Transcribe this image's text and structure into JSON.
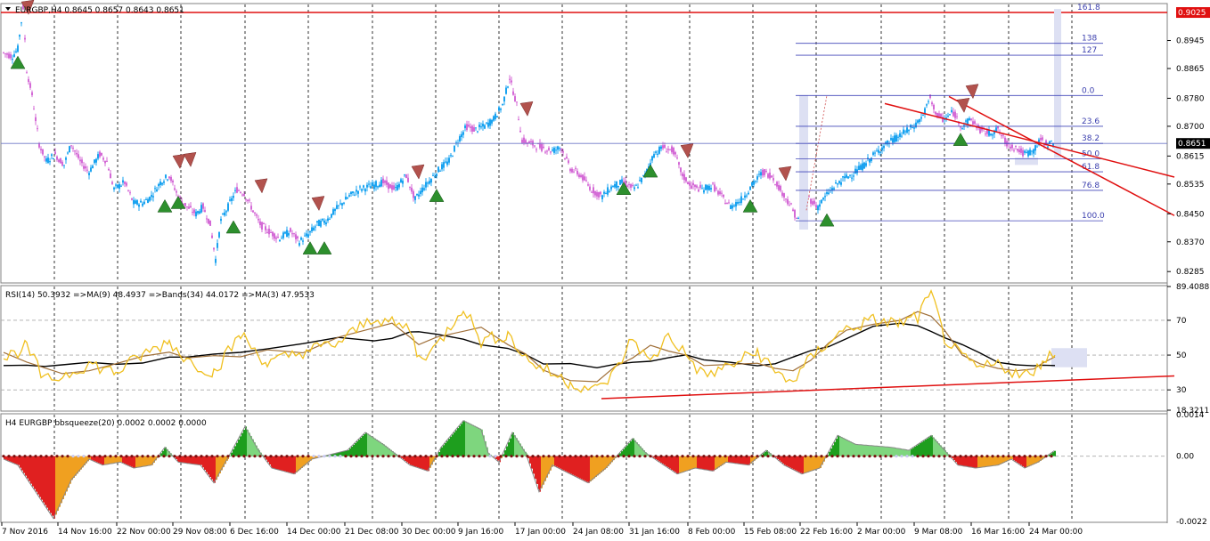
{
  "main_panel": {
    "header": "EURGBP,H4  0.8645 0.8657 0.8643 0.8651",
    "price_ticks": [
      "0.8945",
      "0.8865",
      "0.8780",
      "0.8700",
      "0.8615",
      "0.8535",
      "0.8450",
      "0.8370",
      "0.8285"
    ],
    "price_min": 0.8255,
    "price_max": 0.9048,
    "resistance_price": 0.9025,
    "resistance_label": "0.9025",
    "current_price": 0.8651,
    "current_price_label": "0.8651",
    "fib_levels": [
      {
        "label": "161.8",
        "price": 0.9025
      },
      {
        "label": "138",
        "price": 0.8937
      },
      {
        "label": "127",
        "price": 0.8903
      },
      {
        "label": "0.0",
        "price": 0.8788
      },
      {
        "label": "23.6",
        "price": 0.87
      },
      {
        "label": "38.2",
        "price": 0.8651
      },
      {
        "label": "50.0",
        "price": 0.8607
      },
      {
        "label": "61.8",
        "price": 0.857
      },
      {
        "label": "76.8",
        "price": 0.8517
      },
      {
        "label": "100.0",
        "price": 0.843
      }
    ],
    "colors": {
      "bull": "#1aa3f0",
      "bear": "#d46ad6",
      "resistance": "#e01010",
      "fib": "#4046b8",
      "sell_arrow": "#b2524d",
      "buy_arrow": "#2d8f2d"
    }
  },
  "rsi_panel": {
    "header": "RSI(14) 50.3932  =>MA(9) 48.4937  =>Bands(34) 44.0172  =>MA(3) 47.9533",
    "ticks": [
      "89.4088",
      "70",
      "50",
      "30",
      "18.3211"
    ],
    "min": 18.3211,
    "max": 89.4088
  },
  "squeeze_panel": {
    "header": "H4 EURGBP bbsqueeze(20) 0.0002 0.0002 0.0000",
    "ticks": [
      "0.0014",
      "0.00",
      "-0.0022"
    ],
    "min": -0.0022,
    "max": 0.0014
  },
  "time_axis": {
    "labels": [
      "7 Nov 2016",
      "14 Nov 16:00",
      "22 Nov 00:00",
      "29 Nov 08:00",
      "6 Dec 16:00",
      "14 Dec 00:00",
      "21 Dec 08:00",
      "30 Dec 00:00",
      "9 Jan 16:00",
      "17 Jan 00:00",
      "24 Jan 08:00",
      "31 Jan 16:00",
      "8 Feb 00:00",
      "15 Feb 08:00",
      "22 Feb 16:00",
      "2 Mar 00:00",
      "9 Mar 08:00",
      "16 Mar 16:00",
      "24 Mar 00:00"
    ]
  }
}
